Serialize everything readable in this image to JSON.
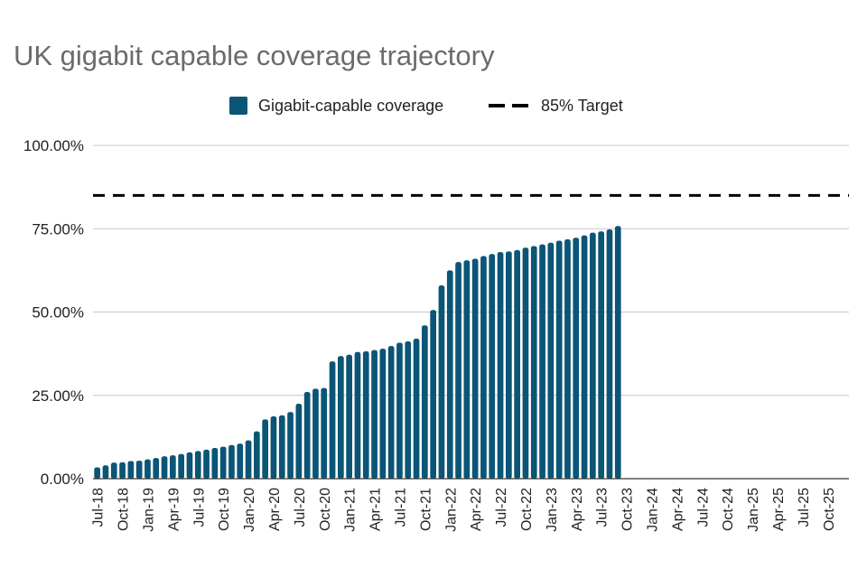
{
  "chart_data": {
    "type": "bar",
    "title": "UK gigabit capable coverage trajectory",
    "xlabel": "",
    "ylabel": "",
    "ylim": [
      0,
      100
    ],
    "y_ticks": [
      "0.00%",
      "25.00%",
      "50.00%",
      "75.00%",
      "100.00%"
    ],
    "grid": true,
    "legend_position": "top",
    "x_tick_labels": [
      "Jul-18",
      "Oct-18",
      "Jan-19",
      "Apr-19",
      "Jul-19",
      "Oct-19",
      "Jan-20",
      "Apr-20",
      "Jul-20",
      "Oct-20",
      "Jan-21",
      "Apr-21",
      "Jul-21",
      "Oct-21",
      "Jan-22",
      "Apr-22",
      "Jul-22",
      "Oct-22",
      "Jan-23",
      "Apr-23",
      "Jul-23",
      "Oct-23",
      "Jan-24",
      "Apr-24",
      "Jul-24",
      "Oct-24",
      "Jan-25",
      "Apr-25",
      "Jul-25",
      "Oct-25"
    ],
    "series": [
      {
        "name": "Gigabit-capable coverage",
        "color": "#0b5576",
        "start_month": "Jul-18",
        "values": [
          3.4,
          4.0,
          4.8,
          4.9,
          5.3,
          5.4,
          5.8,
          6.2,
          6.7,
          7.0,
          7.4,
          7.9,
          8.3,
          8.7,
          9.2,
          9.6,
          10.1,
          10.5,
          11.5,
          14.2,
          17.8,
          18.7,
          19.0,
          20.0,
          22.5,
          26.0,
          27.0,
          27.2,
          35.2,
          36.8,
          37.2,
          38.0,
          38.2,
          38.6,
          39.0,
          39.8,
          40.8,
          41.2,
          42.0,
          46.0,
          50.6,
          58.0,
          62.5,
          65.0,
          65.5,
          66.0,
          66.8,
          67.4,
          68.0,
          68.2,
          68.6,
          69.3,
          69.8,
          70.3,
          70.8,
          71.4,
          71.8,
          72.3,
          73.0,
          73.8,
          74.2,
          74.8,
          75.8
        ]
      },
      {
        "name": "85% Target",
        "color": "#000000",
        "value": 85
      }
    ]
  }
}
